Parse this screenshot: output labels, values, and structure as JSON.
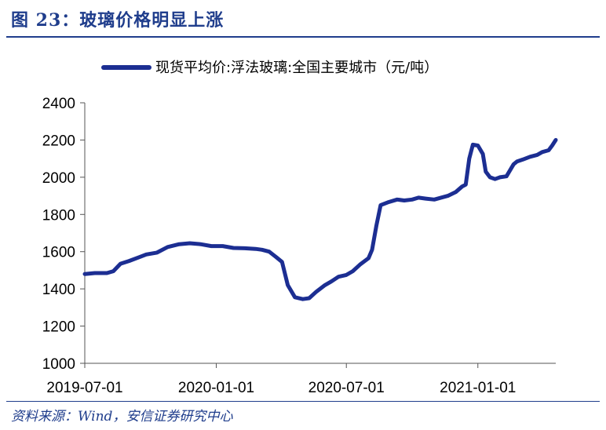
{
  "header": {
    "title": "图 23：玻璃价格明显上涨"
  },
  "footer": {
    "source": "资料来源：Wind，安信证券研究中心"
  },
  "colors": {
    "accent": "#1F3D8C",
    "series": "#1C2E92"
  },
  "chart_data": {
    "type": "line",
    "title": "",
    "xlabel": "",
    "ylabel": "",
    "legend_placement": "top",
    "grid": false,
    "ylim": [
      1000,
      2400
    ],
    "yticks": [
      1000,
      1200,
      1400,
      1600,
      1800,
      2000,
      2200,
      2400
    ],
    "xlim": [
      "2019-07-01",
      "2021-04-20"
    ],
    "xticks": [
      "2019-07-01",
      "2020-01-01",
      "2020-07-01",
      "2021-01-01"
    ],
    "series": [
      {
        "name": "现货平均价:浮法玻璃:全国主要城市（元/吨）",
        "x": [
          "2019-07-01",
          "2019-07-15",
          "2019-08-01",
          "2019-08-10",
          "2019-08-20",
          "2019-09-01",
          "2019-09-15",
          "2019-09-25",
          "2019-10-10",
          "2019-10-25",
          "2019-11-10",
          "2019-11-25",
          "2019-12-10",
          "2019-12-25",
          "2020-01-10",
          "2020-01-25",
          "2020-02-10",
          "2020-02-25",
          "2020-03-05",
          "2020-03-15",
          "2020-03-25",
          "2020-04-02",
          "2020-04-10",
          "2020-04-20",
          "2020-05-01",
          "2020-05-10",
          "2020-05-20",
          "2020-06-01",
          "2020-06-10",
          "2020-06-20",
          "2020-07-01",
          "2020-07-10",
          "2020-07-20",
          "2020-08-01",
          "2020-08-06",
          "2020-08-12",
          "2020-08-18",
          "2020-08-28",
          "2020-09-10",
          "2020-09-20",
          "2020-10-01",
          "2020-10-10",
          "2020-10-20",
          "2020-11-01",
          "2020-11-20",
          "2020-12-01",
          "2020-12-10",
          "2020-12-15",
          "2020-12-20",
          "2020-12-25",
          "2021-01-01",
          "2021-01-08",
          "2021-01-12",
          "2021-01-18",
          "2021-01-25",
          "2021-02-01",
          "2021-02-10",
          "2021-02-20",
          "2021-02-25",
          "2021-03-05",
          "2021-03-15",
          "2021-03-25",
          "2021-04-01",
          "2021-04-10",
          "2021-04-15",
          "2021-04-20"
        ],
        "values": [
          1480,
          1485,
          1485,
          1495,
          1535,
          1550,
          1570,
          1585,
          1595,
          1625,
          1640,
          1645,
          1640,
          1630,
          1630,
          1620,
          1618,
          1615,
          1610,
          1600,
          1570,
          1545,
          1420,
          1355,
          1345,
          1350,
          1385,
          1420,
          1440,
          1465,
          1475,
          1495,
          1530,
          1565,
          1610,
          1740,
          1850,
          1865,
          1880,
          1875,
          1880,
          1890,
          1885,
          1880,
          1900,
          1920,
          1950,
          1960,
          2100,
          2175,
          2170,
          2125,
          2030,
          2000,
          1990,
          2000,
          2005,
          2070,
          2085,
          2095,
          2110,
          2120,
          2135,
          2145,
          2170,
          2200
        ]
      }
    ]
  }
}
